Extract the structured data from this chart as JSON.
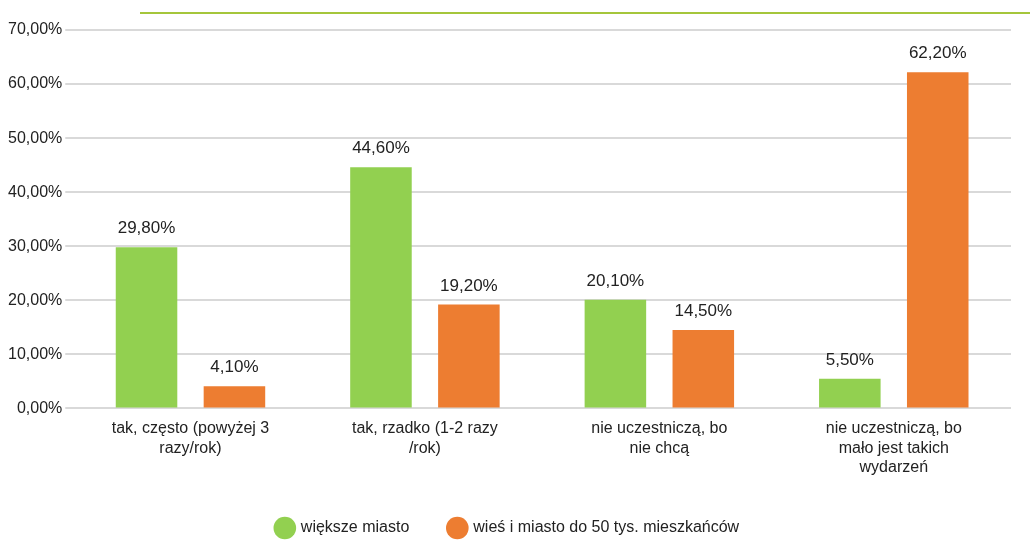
{
  "chart_data": {
    "type": "bar",
    "categories": [
      "tak, często (powyżej 3 razy/rok)",
      "tak, rzadko (1-2 razy /rok)",
      "nie uczestniczą, bo nie chcą",
      "nie uczestniczą, bo mało jest takich wydarzeń"
    ],
    "series": [
      {
        "name": "większe miasto",
        "color": "#92d050",
        "values": [
          29.8,
          44.6,
          20.1,
          5.5
        ],
        "value_labels": [
          "29,80%",
          "44,60%",
          "20,10%",
          "5,50%"
        ]
      },
      {
        "name": "wieś i miasto do 50 tys. mieszkańców",
        "color": "#ed7d31",
        "values": [
          4.1,
          19.2,
          14.5,
          62.2
        ],
        "value_labels": [
          "4,10%",
          "19,20%",
          "14,50%",
          "62,20%"
        ]
      }
    ],
    "ylim": [
      0,
      70
    ],
    "yticks": [
      {
        "value": 0,
        "label": "0,00%"
      },
      {
        "value": 10,
        "label": "10,00%"
      },
      {
        "value": 20,
        "label": "20,00%"
      },
      {
        "value": 30,
        "label": "30,00%"
      },
      {
        "value": 40,
        "label": "40,00%"
      },
      {
        "value": 50,
        "label": "50,00%"
      },
      {
        "value": 60,
        "label": "60,00%"
      },
      {
        "value": 70,
        "label": "70,00%"
      }
    ],
    "grid": "y",
    "legend": "bottom"
  }
}
